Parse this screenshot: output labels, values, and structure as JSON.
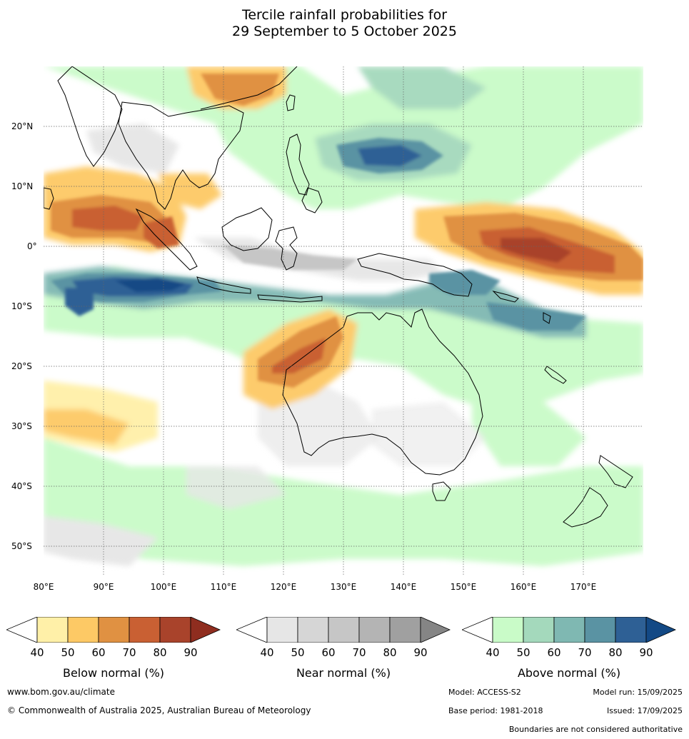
{
  "title": {
    "line1": "Tercile rainfall probabilities for",
    "line2": "29 September to 5 October 2025"
  },
  "map": {
    "lat_labels": [
      "20°N",
      "10°N",
      "0°",
      "10°S",
      "20°S",
      "30°S",
      "40°S",
      "50°S"
    ],
    "lon_labels": [
      "80°E",
      "90°E",
      "100°E",
      "110°E",
      "120°E",
      "130°E",
      "140°E",
      "150°E",
      "160°E",
      "170°E"
    ]
  },
  "legends": {
    "ticks": [
      "40",
      "50",
      "60",
      "70",
      "80",
      "90"
    ],
    "below": {
      "label": "Below normal (%)",
      "colors": [
        "#fff0a8",
        "#fdc965",
        "#e09142",
        "#c96033",
        "#a9432b",
        "#8f2d1f"
      ]
    },
    "near": {
      "label": "Near normal (%)",
      "colors": [
        "#e6e6e6",
        "#d6d6d6",
        "#c6c6c6",
        "#b4b4b4",
        "#a0a0a0",
        "#858585"
      ]
    },
    "above": {
      "label": "Above normal (%)",
      "colors": [
        "#c9fbc8",
        "#a4d9bc",
        "#7fb8b2",
        "#5a93a3",
        "#2e6095",
        "#134985"
      ]
    }
  },
  "footer": {
    "website": "www.bom.gov.au/climate",
    "copyright": "© Commonwealth of Australia 2025, Australian Bureau of Meteorology",
    "model": "Model: ACCESS-S2",
    "model_run": "Model run: 15/09/2025",
    "base_period": "Base period: 1981-2018",
    "issued": "Issued: 17/09/2025",
    "boundaries_note": "Boundaries are not considered authoritative"
  }
}
